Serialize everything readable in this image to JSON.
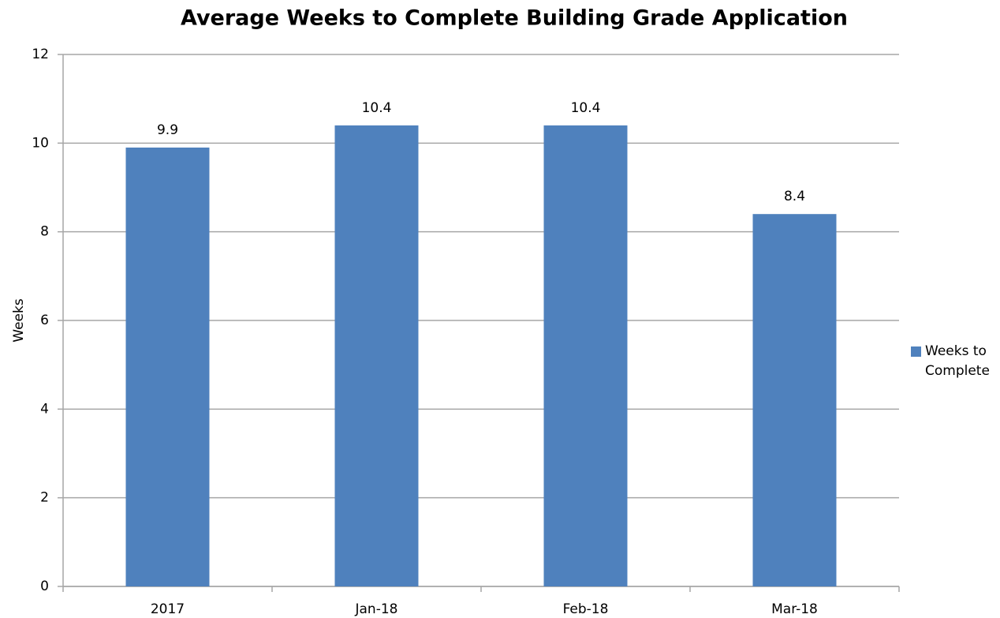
{
  "chart_data": {
    "type": "bar",
    "title": "Average Weeks to Complete Building Grade Application",
    "y_label": "Weeks",
    "categories": [
      "2017",
      "Jan-18",
      "Feb-18",
      "Mar-18"
    ],
    "series": [
      {
        "name": "Weeks to Complete",
        "color": "#4f81bd",
        "values": [
          9.9,
          10.4,
          10.4,
          8.4
        ]
      }
    ],
    "ylim": [
      0,
      12
    ],
    "yticks": [
      0,
      2,
      4,
      6,
      8,
      10,
      12
    ],
    "grid": true,
    "legend": "right"
  }
}
